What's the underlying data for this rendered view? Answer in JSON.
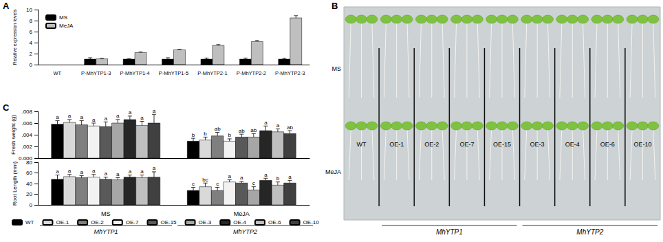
{
  "chart_data": [
    {
      "type": "bar",
      "ylabel": "Relative expression levels",
      "categories": [
        "WT",
        "P-MhYTP1-3",
        "P-MhYTP1-4",
        "P-MhYTP1-5",
        "P-MhYTP2-1",
        "P-MhYTP2-2",
        "P-MhYTP2-3"
      ],
      "series": [
        {
          "name": "MS",
          "color": "#000000",
          "values": [
            null,
            1,
            1,
            1,
            1,
            1,
            1
          ],
          "errors": [
            null,
            0.25,
            0.1,
            0.25,
            0.2,
            0.2,
            0.15
          ]
        },
        {
          "name": "MeJA",
          "color": "#bfbfbf",
          "values": [
            null,
            1.05,
            2.2,
            2.7,
            3.5,
            4.2,
            8.5
          ],
          "errors": [
            null,
            0.1,
            0.1,
            0.1,
            0.15,
            0.2,
            0.4
          ]
        }
      ],
      "ylim": [
        0,
        10
      ],
      "yticks": [
        0,
        2,
        4,
        6,
        8,
        10
      ],
      "grid": false,
      "legend": "upper left"
    },
    {
      "type": "bar",
      "ylabel": "Fresh weight (g)",
      "categories": [
        "MS",
        "MeJA"
      ],
      "series": [
        {
          "name": "WT",
          "color": "#000000",
          "values": [
            0.0058,
            0.0029
          ],
          "errors": [
            0.0006,
            0.0005
          ],
          "letters": [
            "a",
            "b"
          ]
        },
        {
          "name": "OE-1",
          "color": "#d9d9d9",
          "values": [
            0.0061,
            0.0031
          ],
          "errors": [
            0.0005,
            0.0005
          ],
          "letters": [
            "a",
            "b"
          ]
        },
        {
          "name": "OE-2",
          "color": "#7f7f7f",
          "values": [
            0.0057,
            0.0038
          ],
          "errors": [
            0.0007,
            0.0006
          ],
          "letters": [
            "a",
            "ab"
          ]
        },
        {
          "name": "OE-7",
          "color": "#f2f2f2",
          "values": [
            0.0055,
            0.0029
          ],
          "errors": [
            0.0005,
            0.0004
          ],
          "letters": [
            "a",
            "b"
          ]
        },
        {
          "name": "OE-15",
          "color": "#595959",
          "values": [
            0.0054,
            0.0036
          ],
          "errors": [
            0.0008,
            0.0005
          ],
          "letters": [
            "a",
            "ab"
          ]
        },
        {
          "name": "OE-3",
          "color": "#a6a6a6",
          "values": [
            0.006,
            0.0036
          ],
          "errors": [
            0.0006,
            0.0006
          ],
          "letters": [
            "a",
            "ab"
          ]
        },
        {
          "name": "OE-4",
          "color": "#262626",
          "values": [
            0.0066,
            0.0047
          ],
          "errors": [
            0.0006,
            0.0008
          ],
          "letters": [
            "a",
            "a"
          ]
        },
        {
          "name": "OE-6",
          "color": "#bfbfbf",
          "values": [
            0.0056,
            0.0045
          ],
          "errors": [
            0.0007,
            0.0005
          ],
          "letters": [
            "a",
            "a"
          ]
        },
        {
          "name": "OE-10",
          "color": "#404040",
          "values": [
            0.006,
            0.0042
          ],
          "errors": [
            0.0015,
            0.0005
          ],
          "letters": [
            "a",
            "ab"
          ]
        }
      ],
      "ylim": [
        0,
        0.008
      ],
      "yticks": [
        {
          "value": 0,
          "label": "0.000"
        },
        {
          "value": 0.002,
          "label": ".002"
        },
        {
          "value": 0.004,
          "label": ".004"
        },
        {
          "value": 0.006,
          "label": ".006"
        },
        {
          "value": 0.008,
          "label": ".008"
        }
      ],
      "grid": false,
      "tick_labels": "y"
    },
    {
      "type": "bar",
      "ylabel": "Root Length (mm)",
      "categories": [
        "MS",
        "MeJA"
      ],
      "series": [
        {
          "name": "WT",
          "color": "#000000",
          "values": [
            48,
            27
          ],
          "errors": [
            8,
            6
          ],
          "letters": [
            "a",
            "c"
          ]
        },
        {
          "name": "OE-1",
          "color": "#d9d9d9",
          "values": [
            53,
            34
          ],
          "errors": [
            4,
            7
          ],
          "letters": [
            "a",
            "bc"
          ]
        },
        {
          "name": "OE-2",
          "color": "#7f7f7f",
          "values": [
            51,
            27
          ],
          "errors": [
            4,
            6
          ],
          "letters": [
            "a",
            "c"
          ]
        },
        {
          "name": "OE-7",
          "color": "#f2f2f2",
          "values": [
            52,
            43
          ],
          "errors": [
            5,
            4
          ],
          "letters": [
            "a",
            "a"
          ]
        },
        {
          "name": "OE-15",
          "color": "#595959",
          "values": [
            48,
            41
          ],
          "errors": [
            4,
            3
          ],
          "letters": [
            "a",
            "a"
          ]
        },
        {
          "name": "OE-3",
          "color": "#a6a6a6",
          "values": [
            47,
            28
          ],
          "errors": [
            4,
            6
          ],
          "letters": [
            "a",
            "c"
          ]
        },
        {
          "name": "OE-4",
          "color": "#262626",
          "values": [
            52,
            46
          ],
          "errors": [
            4,
            4
          ],
          "letters": [
            "a",
            "a"
          ]
        },
        {
          "name": "OE-6",
          "color": "#bfbfbf",
          "values": [
            51,
            37
          ],
          "errors": [
            5,
            6
          ],
          "letters": [
            "a",
            "b"
          ]
        },
        {
          "name": "OE-10",
          "color": "#404040",
          "values": [
            52,
            41
          ],
          "errors": [
            10,
            5
          ],
          "letters": [
            "a",
            "a"
          ]
        }
      ],
      "ylim": [
        0,
        80
      ],
      "yticks": [
        0,
        20,
        40,
        60,
        80
      ],
      "grid": false,
      "legend": "bottom"
    }
  ],
  "legend_groups": [
    {
      "label": "MhYTP1",
      "members": [
        "OE-1",
        "OE-2",
        "OE-7",
        "OE-15"
      ]
    },
    {
      "label": "MhYTP2",
      "members": [
        "OE-3",
        "OE-4",
        "OE-6",
        "OE-10"
      ]
    }
  ],
  "photo_panel": {
    "rows": [
      "MS",
      "MeJA"
    ],
    "columns": [
      "WT",
      "OE-1",
      "OE-2",
      "OE-7",
      "OE-15",
      "OE-3",
      "OE-4",
      "OE-6",
      "OE-10"
    ],
    "groups": [
      {
        "label": "MhYTP1",
        "columns": [
          "OE-1",
          "OE-2",
          "OE-7",
          "OE-15"
        ]
      },
      {
        "label": "MhYTP2",
        "columns": [
          "OE-3",
          "OE-4",
          "OE-6",
          "OE-10"
        ]
      }
    ]
  },
  "panel_labels": [
    "A",
    "B",
    "C"
  ]
}
